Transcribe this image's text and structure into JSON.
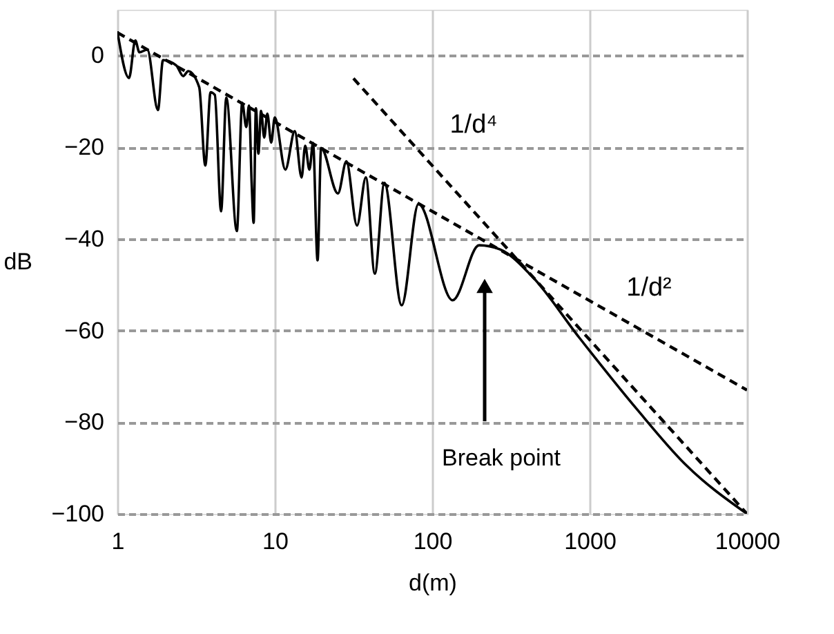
{
  "chart_data": {
    "type": "line",
    "xlabel": "d(m)",
    "ylabel": "dB",
    "log": "x",
    "grid": true,
    "xlim": [
      1,
      10000
    ],
    "ylim": [
      -100,
      10
    ],
    "xticks": [
      1,
      10,
      100,
      1000,
      10000
    ],
    "yticks": [
      -100,
      -80,
      -60,
      -40,
      -20,
      0
    ],
    "series": [
      {
        "color": "#000000",
        "line_style": "solid",
        "x": [
          1,
          1.186,
          1.3,
          1.38,
          1.55,
          1.81,
          1.95,
          2.37,
          2.62,
          2.82,
          3.31,
          3.62,
          3.91,
          4.16,
          4.56,
          4.92,
          5.74,
          6.21,
          6.59,
          6.86,
          7.13,
          7.34,
          7.59,
          7.87,
          8.18,
          8.57,
          8.97,
          9.49,
          10,
          11.67,
          13.4,
          14.8,
          15.6,
          16.6,
          17.5,
          18.7,
          19.7,
          25.2,
          28.5,
          33.3,
          37.9,
          43.2,
          49.7,
          64,
          81.8,
          134.9,
          198.6,
          269.8,
          428.5,
          857,
          2000,
          4000,
          10000
        ],
        "values": [
          5.3,
          -4.9,
          3.3,
          0.7,
          1.3,
          -11.9,
          -1,
          -2.2,
          -4.5,
          -3.4,
          -6.9,
          -24,
          -8,
          -8.6,
          -34,
          -9.2,
          -38.3,
          -10.3,
          -15.6,
          -10.9,
          -27.8,
          -36.5,
          -11.5,
          -21.4,
          -12.1,
          -17.9,
          -12.7,
          -19,
          -13.5,
          -24.9,
          -16.5,
          -26.6,
          -19.7,
          -24.9,
          -19.1,
          -44.7,
          -20.2,
          -30.1,
          -23.1,
          -37.1,
          -26.6,
          -47.6,
          -27.8,
          -54.5,
          -32.4,
          -53.4,
          -41.4,
          -42.3,
          -48.1,
          -61.5,
          -77.2,
          -89,
          -100
        ]
      },
      {
        "name": "1/d²",
        "color": "#000000",
        "line_style": "dashed",
        "x": [
          1,
          10000
        ],
        "values": [
          5,
          -73
        ]
      },
      {
        "name": "1/d⁴",
        "color": "#000000",
        "line_style": "dashed",
        "x": [
          31.6,
          10000
        ],
        "values": [
          -5,
          -100
        ]
      }
    ],
    "annotations": [
      "Break point"
    ]
  }
}
